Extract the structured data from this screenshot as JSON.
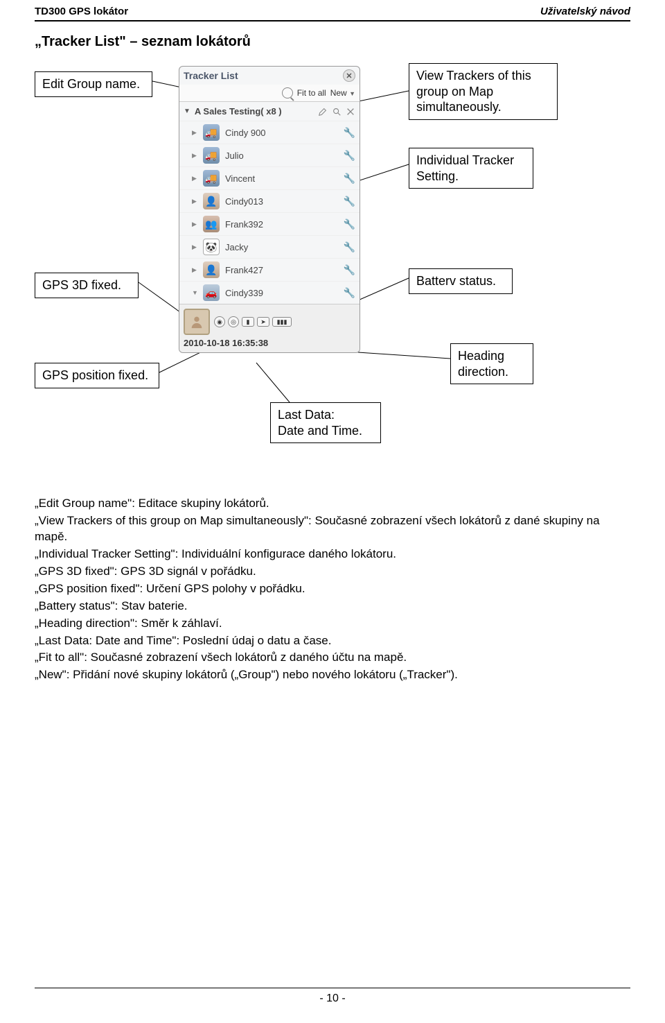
{
  "header": {
    "left_bold": "TD300",
    "left_rest": " GPS lokátor",
    "right": "Uživatelský návod"
  },
  "section_title": "„Tracker List\" – seznam lokátorů",
  "callouts": {
    "edit_group": "Edit Group name.",
    "gps_3d": "GPS 3D fixed.",
    "gps_pos": "GPS position fixed.",
    "view_trackers": "View Trackers of this group on Map simultaneously.",
    "ind_tracker": "Individual Tracker Setting.",
    "battery": "Batterv status.",
    "heading": "Heading direction.",
    "last_data": "Last Data:\nDate and Time."
  },
  "panel": {
    "title": "Tracker List",
    "fit_to_all": "Fit to all",
    "new_label": "New",
    "group_label": "A Sales Testing( x8 )",
    "trackers": [
      {
        "name": "Cindy 900",
        "type": "truck"
      },
      {
        "name": "Julio",
        "type": "truck"
      },
      {
        "name": "Vincent",
        "type": "truck"
      },
      {
        "name": "Cindy013",
        "type": "person"
      },
      {
        "name": "Frank392",
        "type": "person2"
      },
      {
        "name": "Jacky",
        "type": "panda"
      },
      {
        "name": "Frank427",
        "type": "person"
      },
      {
        "name": "Cindy339",
        "type": "car"
      }
    ],
    "timestamp": "2010-10-18 16:35:38"
  },
  "body": [
    "„Edit Group name\": Editace skupiny lokátorů.",
    "„View Trackers of this group on Map simultaneously\": Současné zobrazení všech lokátorů z dané skupiny na mapě.",
    "„Individual Tracker Setting\": Individuální konfigurace daného lokátoru.",
    "„GPS 3D fixed\": GPS 3D signál v pořádku.",
    "„GPS position fixed\": Určení GPS polohy v pořádku.",
    "„Battery status\": Stav baterie.",
    "„Heading direction\": Směr k záhlaví.",
    "„Last Data: Date and Time\": Poslední údaj o datu a čase.",
    "„Fit to all\": Současné zobrazení všech lokátorů z daného účtu na mapě.",
    "„New\": Přidání nové skupiny lokátorů („Group\") nebo nového lokátoru („Tracker\")."
  ],
  "page_num": "- 10 -",
  "colors": {
    "text": "#000000",
    "panel_bg": "#f5f6f7",
    "panel_border": "#9a9a9a",
    "row_border": "#eeeeee"
  }
}
